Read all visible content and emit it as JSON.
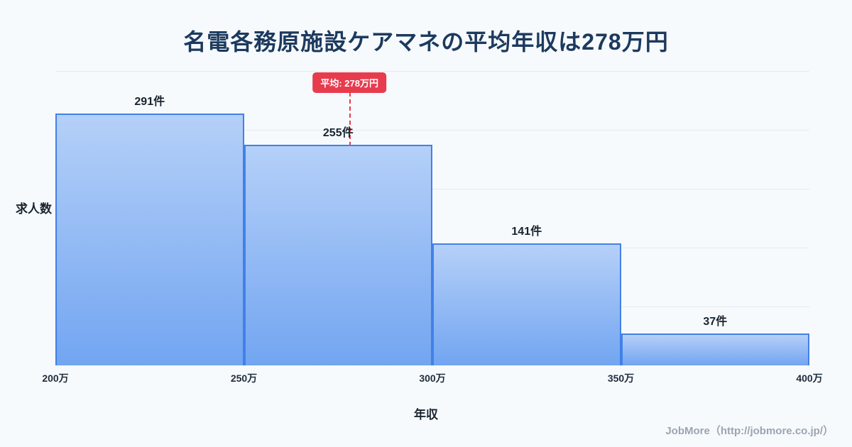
{
  "chart_data": {
    "type": "bar",
    "title": "名電各務原施設ケアマネの平均年収は278万円",
    "xlabel": "年収",
    "ylabel": "求人数",
    "bin_edges": [
      200,
      250,
      300,
      350,
      400
    ],
    "bin_edge_labels": [
      "200万",
      "250万",
      "300万",
      "350万",
      "400万"
    ],
    "values": [
      291,
      255,
      141,
      37
    ],
    "bar_labels": [
      "291件",
      "255件",
      "141件",
      "37件"
    ],
    "average": 278,
    "average_label": "平均: 278万円",
    "ylim": [
      0,
      340
    ],
    "grid": "horizontal",
    "legend": "none",
    "colors": {
      "background": "#f7fafd",
      "title": "#1c3a5e",
      "bar_fill_top": "#b5d0f8",
      "bar_fill_bottom": "#72a5f1",
      "bar_border": "#4181e8",
      "average_line": "#e73c4e"
    }
  },
  "footer": {
    "credit": "JobMore（http://jobmore.co.jp/）"
  }
}
